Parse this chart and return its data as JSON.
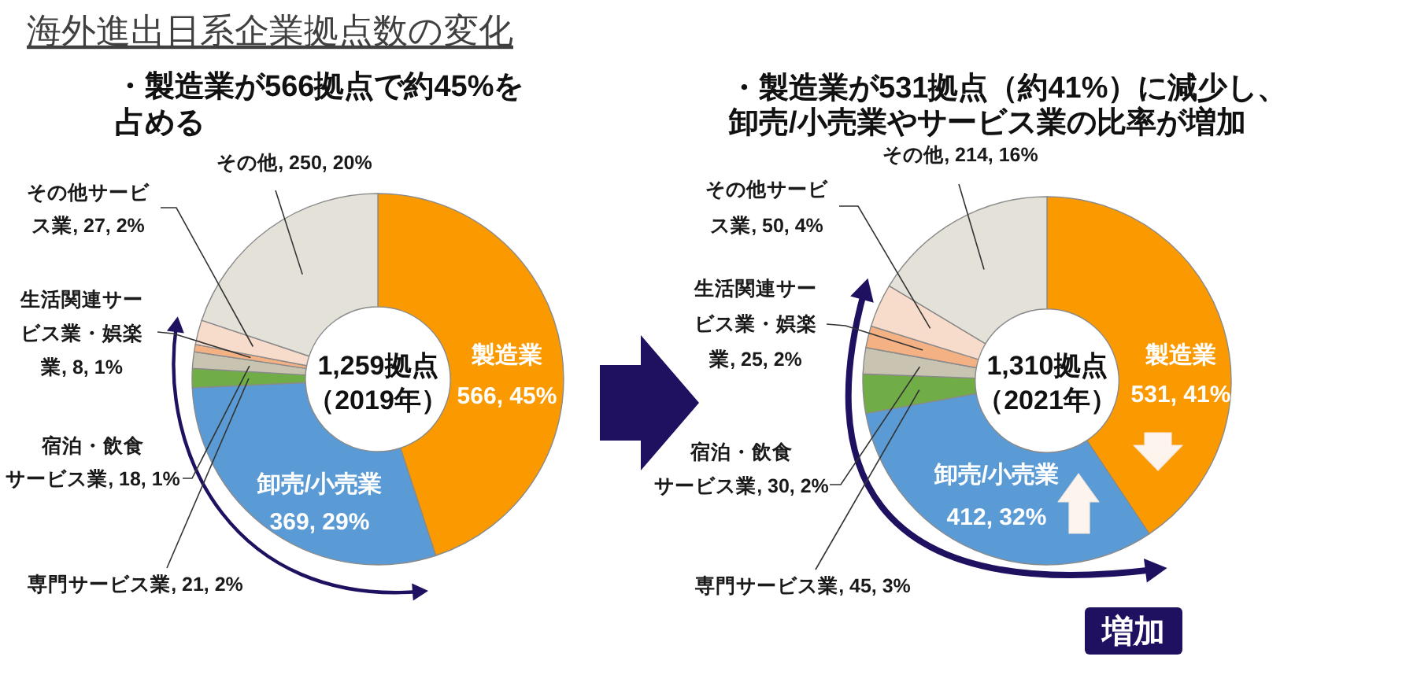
{
  "chart_data": [
    {
      "type": "donut",
      "title": "海外進出日系企業拠点数の変化",
      "subtitle": "・製造業が566拠点で約45%を占める",
      "categories": [
        "製造業",
        "卸売/小売業",
        "専門サービス業",
        "宿泊・飲食サービス業",
        "生活関連サービス業・娯楽業",
        "その他サービス業",
        "その他"
      ],
      "values": [
        566,
        369,
        21,
        18,
        8,
        27,
        250
      ],
      "colors": [
        "#fa9a00",
        "#5b9bd5",
        "#70ad47",
        "#c9c4b1",
        "#f4b183",
        "#f8dccb",
        "#e3e1d8"
      ],
      "value_labels": [
        "566, 45%",
        "369, 29%",
        "21, 2%",
        "18, 1%",
        "8, 1%",
        "27, 2%",
        "250, 20%"
      ],
      "annotations": [
        "1,259拠点",
        "（2019年）"
      ]
    },
    {
      "type": "donut",
      "subtitle": "・製造業が531拠点（約41%）に減少し、卸売/小売業やサービス業の比率が増加",
      "categories": [
        "製造業",
        "卸売/小売業",
        "専門サービス業",
        "宿泊・飲食サービス業",
        "生活関連サービス業・娯楽業",
        "その他サービス業",
        "その他"
      ],
      "values": [
        531,
        412,
        45,
        30,
        25,
        50,
        214
      ],
      "colors": [
        "#fa9a00",
        "#5b9bd5",
        "#70ad47",
        "#c9c4b1",
        "#f4b183",
        "#f8dccb",
        "#e3e1d8"
      ],
      "value_labels": [
        "531, 41%",
        "412, 32%",
        "45, 3%",
        "30, 2%",
        "25, 2%",
        "50, 4%",
        "214, 16%"
      ],
      "annotations": [
        "1,310拠点",
        "（2021年）",
        "増加"
      ]
    }
  ]
}
